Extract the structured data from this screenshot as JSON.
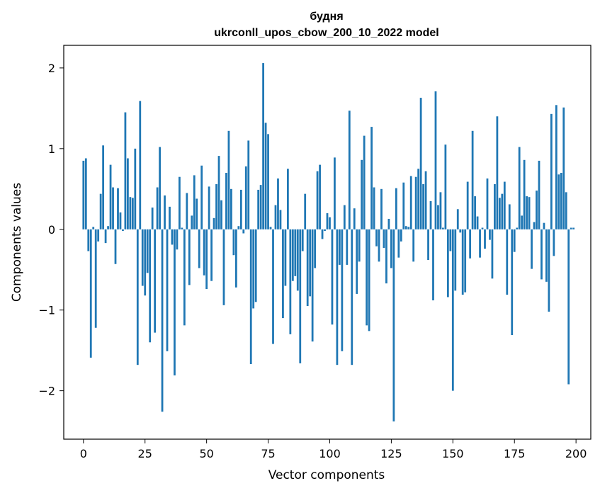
{
  "chart_data": {
    "type": "bar",
    "title": "будня",
    "subtitle": "ukrconll_upos_cbow_200_10_2022 model",
    "xlabel": "Vector components",
    "ylabel": "Components values",
    "xlim": [
      -8,
      206
    ],
    "ylim": [
      -2.6,
      2.28
    ],
    "xticks": [
      0,
      25,
      50,
      75,
      100,
      125,
      150,
      175,
      200
    ],
    "xtick_labels": [
      "0",
      "25",
      "50",
      "75",
      "100",
      "125",
      "150",
      "175",
      "200"
    ],
    "yticks": [
      2,
      1,
      0,
      -1,
      -2
    ],
    "ytick_labels": [
      "2",
      "1",
      "0",
      "−1",
      "−2"
    ],
    "grid": false,
    "bar_color": "#1f77b4",
    "values": [
      0.85,
      0.88,
      -0.27,
      -1.59,
      0.03,
      -1.22,
      -0.15,
      0.44,
      1.04,
      -0.17,
      0.04,
      0.8,
      0.52,
      -0.43,
      0.51,
      0.21,
      -0.02,
      1.45,
      0.88,
      0.4,
      0.39,
      1.0,
      -1.68,
      1.59,
      -0.7,
      -0.82,
      -0.54,
      -1.4,
      0.27,
      -1.28,
      0.52,
      1.02,
      -2.26,
      0.42,
      -1.51,
      0.28,
      -0.19,
      -1.81,
      -0.25,
      0.65,
      0.02,
      -1.19,
      0.45,
      -0.69,
      0.17,
      0.67,
      0.38,
      -0.48,
      0.79,
      -0.57,
      -0.74,
      0.53,
      -0.64,
      0.14,
      0.56,
      0.91,
      0.36,
      -0.94,
      0.7,
      1.22,
      0.5,
      -0.32,
      -0.72,
      0.04,
      0.49,
      -0.05,
      0.78,
      1.1,
      -1.67,
      -0.98,
      -0.9,
      0.49,
      0.55,
      2.06,
      1.32,
      1.18,
      0.03,
      -1.42,
      0.3,
      0.63,
      0.24,
      -1.1,
      -0.7,
      0.75,
      -1.3,
      -0.64,
      -0.58,
      -0.76,
      -1.66,
      -0.27,
      0.44,
      -0.95,
      -0.83,
      -1.39,
      -0.48,
      0.72,
      0.8,
      -0.12,
      -0.02,
      0.2,
      0.15,
      -1.18,
      0.89,
      -1.68,
      -0.44,
      -1.51,
      0.3,
      -0.44,
      1.47,
      -1.68,
      0.26,
      -0.8,
      -0.4,
      0.86,
      1.16,
      -1.19,
      -1.26,
      1.27,
      0.52,
      -0.21,
      -0.4,
      0.5,
      -0.23,
      -0.67,
      0.13,
      -0.48,
      -2.38,
      0.51,
      -0.35,
      -0.15,
      0.58,
      0.04,
      0.03,
      0.66,
      -0.4,
      0.65,
      0.75,
      1.63,
      0.56,
      0.72,
      -0.38,
      0.35,
      -0.88,
      1.71,
      0.3,
      0.46,
      0.02,
      1.05,
      -0.84,
      -0.27,
      -2.0,
      -0.76,
      0.25,
      -0.04,
      -0.81,
      -0.78,
      0.59,
      -0.36,
      1.22,
      0.41,
      0.16,
      -0.35,
      0.02,
      -0.24,
      0.63,
      -0.13,
      -0.61,
      0.56,
      1.4,
      0.39,
      0.44,
      0.59,
      -0.81,
      0.31,
      -1.31,
      -0.28,
      0.02,
      1.02,
      0.17,
      0.86,
      0.41,
      0.4,
      -0.49,
      0.09,
      0.48,
      0.85,
      -0.62,
      0.08,
      -0.65,
      -1.02,
      1.43,
      -0.33,
      1.54,
      0.68,
      0.7,
      1.51,
      0.46,
      -1.92,
      0.02,
      0.02
    ]
  }
}
